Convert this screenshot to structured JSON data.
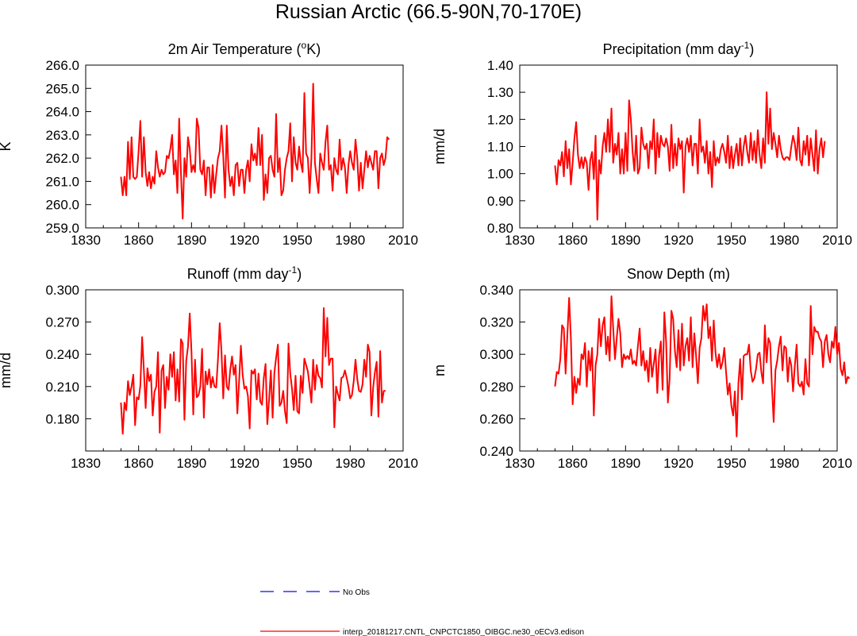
{
  "figure": {
    "title": "Russian Arctic (66.5-90N,70-170E)"
  },
  "legend": {
    "items": [
      {
        "label": "No Obs",
        "color": "#3333ee",
        "style": "dashed"
      },
      {
        "label": "interp_20181217.CNTL_CNPCTC1850_OIBGC.ne30_oECv3.edison",
        "color": "#ff0000",
        "style": "solid"
      }
    ]
  },
  "chart_data": [
    {
      "type": "line",
      "title": "2m Air Temperature (",
      "title_sup": "o",
      "title_tail": "K)",
      "ylabel": "K",
      "xlim": [
        1830,
        2010
      ],
      "ylim": [
        259.0,
        266.0
      ],
      "xticks": [
        1830,
        1860,
        1890,
        1920,
        1950,
        1980,
        2010
      ],
      "yticks": [
        "259.0",
        "260.0",
        "261.0",
        "262.0",
        "263.0",
        "264.0",
        "265.0",
        "266.0"
      ],
      "series": [
        {
          "color": "#ff0000",
          "x_start": 1850,
          "values": [
            261.2,
            260.4,
            261.2,
            260.4,
            262.7,
            261.1,
            262.9,
            261.2,
            261.1,
            261.2,
            262.3,
            263.6,
            261.2,
            262.9,
            261.4,
            260.8,
            261.4,
            260.7,
            261.2,
            260.9,
            262.3,
            261.6,
            261.2,
            261.5,
            261.3,
            261.4,
            262.1,
            262.0,
            262.4,
            263.0,
            261.3,
            261.9,
            260.5,
            263.7,
            261.4,
            259.4,
            262.0,
            261.2,
            262.9,
            262.4,
            261.4,
            261.7,
            261.4,
            263.7,
            263.3,
            261.5,
            261.3,
            261.9,
            260.4,
            261.6,
            261.6,
            260.3,
            261.7,
            260.5,
            261.3,
            262.0,
            262.3,
            263.4,
            262.1,
            260.3,
            263.4,
            261.5,
            260.8,
            261.2,
            260.4,
            261.7,
            261.8,
            260.8,
            261.5,
            261.5,
            260.5,
            261.5,
            261.9,
            261.0,
            262.6,
            261.9,
            262.2,
            261.7,
            263.3,
            261.7,
            263.0,
            260.2,
            261.3,
            260.5,
            262.0,
            262.1,
            261.5,
            261.2,
            263.9,
            261.4,
            262.0,
            260.4,
            260.6,
            261.5,
            262.0,
            262.3,
            263.5,
            261.0,
            262.9,
            261.8,
            261.5,
            262.5,
            261.8,
            261.4,
            264.8,
            262.2,
            262.0,
            260.5,
            262.0,
            265.2,
            261.8,
            261.1,
            260.5,
            262.2,
            261.8,
            261.5,
            262.7,
            263.4,
            261.5,
            261.7,
            260.6,
            262.0,
            261.5,
            261.3,
            262.8,
            261.5,
            262.0,
            261.6,
            260.5,
            261.7,
            262.3,
            261.8,
            261.5,
            262.8,
            262.0,
            260.6,
            261.8,
            260.7,
            261.5,
            262.3,
            261.6,
            262.1,
            261.8,
            261.5,
            262.3,
            262.3,
            260.7,
            262.0,
            262.2,
            261.7,
            262.0,
            262.9,
            262.8
          ]
        }
      ]
    },
    {
      "type": "line",
      "title": "Precipitation (mm day",
      "title_sup": "-1",
      "title_tail": ")",
      "ylabel": "mm/d",
      "xlim": [
        1830,
        2010
      ],
      "ylim": [
        0.8,
        1.4
      ],
      "xticks": [
        1830,
        1860,
        1890,
        1920,
        1950,
        1980,
        2010
      ],
      "yticks": [
        "0.80",
        "0.90",
        "1.00",
        "1.10",
        "1.20",
        "1.30",
        "1.40"
      ],
      "series": [
        {
          "color": "#ff0000",
          "x_start": 1850,
          "values": [
            1.03,
            0.96,
            1.05,
            1.03,
            1.08,
            0.99,
            1.12,
            1.02,
            1.09,
            0.96,
            1.04,
            1.13,
            1.19,
            1.07,
            1.02,
            1.06,
            1.02,
            1.06,
            1.04,
            0.94,
            1.05,
            1.08,
            0.98,
            1.14,
            0.83,
            1.05,
            1.0,
            1.1,
            1.15,
            1.08,
            1.2,
            1.08,
            1.24,
            1.04,
            1.11,
            1.07,
            1.15,
            1.0,
            1.09,
            1.0,
            1.15,
            1.01,
            1.27,
            1.2,
            1.08,
            1.01,
            1.14,
            1.0,
            1.02,
            1.17,
            1.11,
            1.09,
            1.11,
            1.02,
            1.12,
            1.09,
            1.2,
            1.0,
            1.15,
            1.06,
            1.14,
            1.11,
            1.1,
            1.13,
            1.1,
            1.01,
            1.18,
            1.02,
            1.11,
            1.03,
            1.13,
            1.09,
            1.12,
            0.93,
            1.1,
            1.13,
            1.08,
            1.14,
            1.03,
            1.11,
            1.11,
            1.0,
            1.2,
            1.08,
            1.1,
            1.04,
            1.12,
            1.0,
            1.08,
            0.95,
            1.12,
            1.03,
            1.06,
            1.04,
            1.09,
            1.11,
            1.08,
            1.04,
            1.14,
            1.02,
            1.1,
            1.02,
            1.07,
            1.11,
            1.03,
            1.13,
            1.03,
            1.1,
            1.14,
            1.08,
            1.04,
            1.15,
            1.05,
            1.12,
            1.04,
            1.16,
            1.07,
            1.02,
            1.13,
            1.04,
            1.3,
            1.11,
            1.24,
            1.09,
            1.15,
            1.11,
            1.06,
            1.14,
            1.09,
            1.06,
            1.05,
            1.06,
            1.06,
            1.05,
            1.1,
            1.14,
            1.11,
            1.05,
            1.17,
            1.05,
            1.03,
            1.12,
            1.07,
            1.14,
            1.03,
            1.13,
            1.07,
            1.01,
            1.16,
            1.0,
            1.09,
            1.13,
            1.06,
            1.12
          ]
        }
      ]
    },
    {
      "type": "line",
      "title": "Runoff (mm day",
      "title_sup": "-1",
      "title_tail": ")",
      "ylabel": "mm/d",
      "xlim": [
        1830,
        2010
      ],
      "ylim": [
        0.15,
        0.3
      ],
      "xticks": [
        1830,
        1860,
        1890,
        1920,
        1950,
        1980,
        2010
      ],
      "yticks": [
        "0.180",
        "0.210",
        "0.240",
        "0.270",
        "0.300"
      ],
      "ytick_values": [
        0.18,
        0.21,
        0.24,
        0.27,
        0.3
      ],
      "series": [
        {
          "color": "#ff0000",
          "x_start": 1850,
          "values": [
            0.195,
            0.166,
            0.195,
            0.188,
            0.215,
            0.202,
            0.21,
            0.221,
            0.174,
            0.2,
            0.198,
            0.211,
            0.256,
            0.225,
            0.19,
            0.227,
            0.215,
            0.221,
            0.183,
            0.205,
            0.21,
            0.242,
            0.167,
            0.225,
            0.23,
            0.19,
            0.219,
            0.207,
            0.24,
            0.219,
            0.242,
            0.197,
            0.226,
            0.196,
            0.254,
            0.25,
            0.179,
            0.234,
            0.247,
            0.278,
            0.242,
            0.184,
            0.235,
            0.2,
            0.202,
            0.21,
            0.245,
            0.181,
            0.224,
            0.212,
            0.226,
            0.209,
            0.219,
            0.21,
            0.209,
            0.235,
            0.269,
            0.243,
            0.199,
            0.239,
            0.21,
            0.207,
            0.226,
            0.238,
            0.221,
            0.23,
            0.185,
            0.215,
            0.248,
            0.221,
            0.208,
            0.21,
            0.201,
            0.171,
            0.225,
            0.222,
            0.226,
            0.198,
            0.222,
            0.196,
            0.193,
            0.218,
            0.231,
            0.175,
            0.198,
            0.225,
            0.181,
            0.223,
            0.237,
            0.249,
            0.192,
            0.195,
            0.206,
            0.187,
            0.176,
            0.25,
            0.222,
            0.208,
            0.188,
            0.22,
            0.187,
            0.185,
            0.22,
            0.204,
            0.236,
            0.23,
            0.224,
            0.21,
            0.195,
            0.235,
            0.207,
            0.23,
            0.22,
            0.218,
            0.209,
            0.283,
            0.238,
            0.274,
            0.23,
            0.236,
            0.236,
            0.172,
            0.21,
            0.203,
            0.197,
            0.218,
            0.219,
            0.225,
            0.218,
            0.21,
            0.199,
            0.202,
            0.215,
            0.235,
            0.217,
            0.206,
            0.205,
            0.212,
            0.235,
            0.219,
            0.249,
            0.242,
            0.183,
            0.209,
            0.223,
            0.233,
            0.182,
            0.243,
            0.195,
            0.206,
            0.206
          ]
        }
      ]
    },
    {
      "type": "line",
      "title": "Snow Depth (m)",
      "title_sup": "",
      "title_tail": "",
      "ylabel": "m",
      "xlim": [
        1830,
        2010
      ],
      "ylim": [
        0.24,
        0.34
      ],
      "xticks": [
        1830,
        1860,
        1890,
        1920,
        1950,
        1980,
        2010
      ],
      "yticks": [
        "0.240",
        "0.260",
        "0.280",
        "0.300",
        "0.320",
        "0.340"
      ],
      "series": [
        {
          "color": "#ff0000",
          "x_start": 1850,
          "values": [
            0.28,
            0.289,
            0.288,
            0.297,
            0.318,
            0.316,
            0.288,
            0.312,
            0.335,
            0.31,
            0.269,
            0.286,
            0.276,
            0.285,
            0.281,
            0.3,
            0.297,
            0.307,
            0.28,
            0.302,
            0.29,
            0.304,
            0.262,
            0.293,
            0.3,
            0.322,
            0.305,
            0.318,
            0.323,
            0.3,
            0.311,
            0.296,
            0.336,
            0.316,
            0.297,
            0.31,
            0.322,
            0.313,
            0.292,
            0.3,
            0.297,
            0.299,
            0.297,
            0.303,
            0.294,
            0.296,
            0.293,
            0.305,
            0.316,
            0.293,
            0.302,
            0.29,
            0.296,
            0.283,
            0.304,
            0.286,
            0.294,
            0.303,
            0.276,
            0.299,
            0.308,
            0.278,
            0.326,
            0.308,
            0.27,
            0.285,
            0.327,
            0.322,
            0.302,
            0.292,
            0.315,
            0.29,
            0.319,
            0.293,
            0.305,
            0.31,
            0.296,
            0.323,
            0.292,
            0.313,
            0.299,
            0.282,
            0.304,
            0.31,
            0.33,
            0.321,
            0.331,
            0.31,
            0.317,
            0.296,
            0.321,
            0.301,
            0.292,
            0.3,
            0.291,
            0.295,
            0.304,
            0.289,
            0.275,
            0.282,
            0.268,
            0.262,
            0.277,
            0.249,
            0.282,
            0.297,
            0.272,
            0.299,
            0.3,
            0.3,
            0.306,
            0.29,
            0.283,
            0.285,
            0.291,
            0.3,
            0.301,
            0.289,
            0.282,
            0.318,
            0.295,
            0.31,
            0.307,
            0.28,
            0.258,
            0.29,
            0.296,
            0.305,
            0.311,
            0.29,
            0.305,
            0.304,
            0.283,
            0.298,
            0.293,
            0.277,
            0.293,
            0.306,
            0.282,
            0.28,
            0.283,
            0.275,
            0.297,
            0.282,
            0.28,
            0.33,
            0.3,
            0.317,
            0.314,
            0.314,
            0.31,
            0.308,
            0.292,
            0.308,
            0.312,
            0.3,
            0.295,
            0.308,
            0.304,
            0.317,
            0.3,
            0.307,
            0.291,
            0.287,
            0.295,
            0.282,
            0.286,
            0.285
          ]
        }
      ]
    }
  ]
}
